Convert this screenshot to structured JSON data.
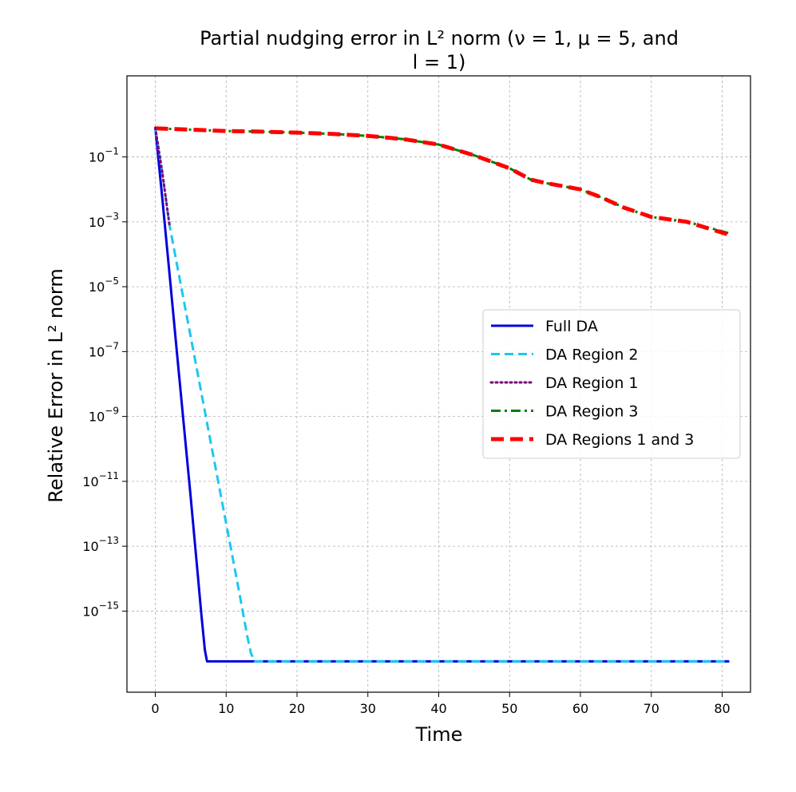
{
  "chart_data": {
    "type": "line",
    "title_line1": "Partial nudging error in L² norm (ν = 1, μ = 5, and",
    "title_line2": "l = 1)",
    "xlabel": "Time",
    "ylabel": "Relative Error in L² norm",
    "xlim": [
      -4,
      84
    ],
    "ylim_exponent": [
      -17.5,
      1.5
    ],
    "yscale": "log",
    "grid": true,
    "legend_position": "center-right",
    "x_ticks": [
      0,
      10,
      20,
      30,
      40,
      50,
      60,
      70,
      80
    ],
    "y_tick_exponents": [
      -15,
      -13,
      -11,
      -9,
      -7,
      -5,
      -3,
      -1
    ],
    "series": [
      {
        "name": "Full DA",
        "color": "#0000dd",
        "style": "solid",
        "x": [
          0,
          1,
          2,
          3,
          4,
          5,
          6,
          6.5,
          7,
          7.3,
          8,
          10,
          20,
          30,
          40,
          50,
          60,
          70,
          81
        ],
        "y_log10": [
          -0.1,
          -2.3,
          -4.6,
          -6.9,
          -9.2,
          -11.5,
          -13.9,
          -15.1,
          -16.2,
          -16.55,
          -16.55,
          -16.55,
          -16.55,
          -16.55,
          -16.55,
          -16.55,
          -16.55,
          -16.55,
          -16.55
        ]
      },
      {
        "name": "DA Region 2",
        "color": "#1ac8f0",
        "style": "dashed",
        "x": [
          0,
          1,
          2,
          4,
          6,
          8,
          10,
          12,
          13,
          13.5,
          14,
          15,
          20,
          30,
          40,
          50,
          60,
          70,
          81
        ],
        "y_log10": [
          -0.1,
          -1.5,
          -3.1,
          -5.4,
          -7.7,
          -10.0,
          -12.3,
          -14.6,
          -15.8,
          -16.3,
          -16.55,
          -16.55,
          -16.55,
          -16.55,
          -16.55,
          -16.55,
          -16.55,
          -16.55,
          -16.55
        ]
      },
      {
        "name": "DA Region 1",
        "color": "#7a007a",
        "style": "dotted",
        "x": [
          0,
          0.5,
          1,
          1.5,
          2
        ],
        "y_log10": [
          -0.1,
          -0.8,
          -1.5,
          -2.3,
          -3.1
        ]
      },
      {
        "name": "DA Region 3",
        "color": "#008000",
        "style": "dashdot",
        "x": [
          0,
          5,
          10,
          15,
          20,
          25,
          30,
          35,
          40,
          45,
          50,
          53,
          55,
          60,
          63,
          66,
          70,
          75,
          81
        ],
        "y_log10": [
          -0.12,
          -0.16,
          -0.2,
          -0.22,
          -0.25,
          -0.29,
          -0.35,
          -0.45,
          -0.62,
          -0.95,
          -1.35,
          -1.7,
          -1.8,
          -2.0,
          -2.25,
          -2.55,
          -2.85,
          -3.0,
          -3.35
        ]
      },
      {
        "name": "DA Regions 1 and 3",
        "color": "#ff0000",
        "style": "wide-dashed",
        "x": [
          0,
          5,
          10,
          15,
          20,
          25,
          30,
          35,
          40,
          45,
          50,
          53,
          55,
          60,
          63,
          66,
          70,
          75,
          81
        ],
        "y_log10": [
          -0.12,
          -0.16,
          -0.2,
          -0.22,
          -0.25,
          -0.29,
          -0.35,
          -0.45,
          -0.62,
          -0.95,
          -1.35,
          -1.7,
          -1.8,
          -2.0,
          -2.25,
          -2.55,
          -2.85,
          -3.0,
          -3.4
        ]
      }
    ]
  }
}
